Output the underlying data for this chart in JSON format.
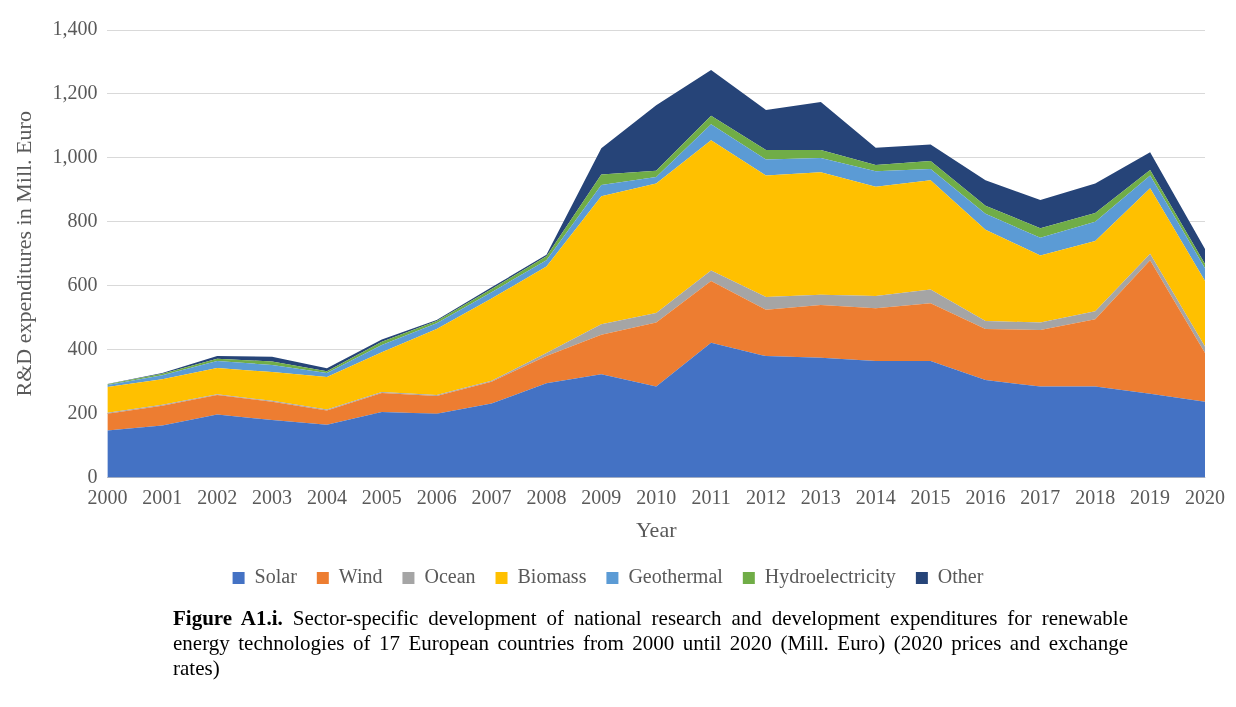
{
  "chart_data": {
    "type": "area",
    "stacked": true,
    "xlabel": "Year",
    "ylabel": "R&D expenditures in Mill. Euro",
    "categories": [
      "2000",
      "2001",
      "2002",
      "2003",
      "2004",
      "2005",
      "2006",
      "2007",
      "2008",
      "2009",
      "2010",
      "2011",
      "2012",
      "2013",
      "2014",
      "2015",
      "2016",
      "2017",
      "2018",
      "2019",
      "2020"
    ],
    "series": [
      {
        "name": "Solar",
        "color": "#4472c4",
        "values": [
          147,
          163,
          197,
          180,
          165,
          205,
          200,
          232,
          295,
          323,
          285,
          422,
          380,
          375,
          365,
          365,
          305,
          285,
          285,
          262,
          237
        ]
      },
      {
        "name": "Wind",
        "color": "#ed7d31",
        "values": [
          53,
          62,
          61,
          57,
          45,
          60,
          55,
          68,
          85,
          124,
          200,
          193,
          145,
          165,
          165,
          180,
          160,
          177,
          210,
          418,
          153
        ]
      },
      {
        "name": "Ocean",
        "color": "#a5a5a5",
        "values": [
          3,
          3,
          3,
          3,
          3,
          3,
          3,
          3,
          10,
          33,
          30,
          33,
          40,
          32,
          38,
          43,
          25,
          23,
          25,
          20,
          20
        ]
      },
      {
        "name": "Biomass",
        "color": "#ffc000",
        "values": [
          80,
          80,
          82,
          90,
          102,
          124,
          207,
          257,
          270,
          400,
          405,
          407,
          380,
          383,
          342,
          342,
          285,
          210,
          220,
          205,
          205
        ]
      },
      {
        "name": "Geothermal",
        "color": "#5b9bd5",
        "values": [
          7,
          12,
          22,
          22,
          12,
          23,
          18,
          20,
          20,
          35,
          20,
          50,
          50,
          45,
          48,
          35,
          50,
          55,
          60,
          40,
          40
        ]
      },
      {
        "name": "Hydroelectricity",
        "color": "#70ad47",
        "values": [
          2,
          5,
          7,
          11,
          6,
          10,
          7,
          10,
          12,
          33,
          20,
          27,
          30,
          25,
          20,
          25,
          25,
          30,
          28,
          17,
          13
        ]
      },
      {
        "name": "Other",
        "color": "#264478",
        "values": [
          1,
          2,
          8,
          15,
          9,
          7,
          3,
          5,
          5,
          82,
          205,
          143,
          125,
          150,
          54,
          52,
          80,
          88,
          92,
          56,
          47
        ]
      }
    ],
    "ylim": [
      0,
      1400
    ],
    "yticks": [
      0,
      {
        "value": 200,
        "label": "200"
      },
      {
        "value": 400,
        "label": "400"
      },
      {
        "value": 600,
        "label": "600"
      },
      {
        "value": 800,
        "label": "800"
      },
      {
        "value": 1000,
        "label": "1,000"
      },
      {
        "value": 1200,
        "label": "1,200"
      },
      {
        "value": 1400,
        "label": "1,400"
      }
    ],
    "grid": "y",
    "legend": "bottom",
    "annotations": [
      "Figure A1.i. Sector-specific development of national research and development expenditures for renewable energy technologies of 17 European countries from 2000 until 2020 (Mill. Euro) (2020 prices and exchange rates)"
    ]
  }
}
